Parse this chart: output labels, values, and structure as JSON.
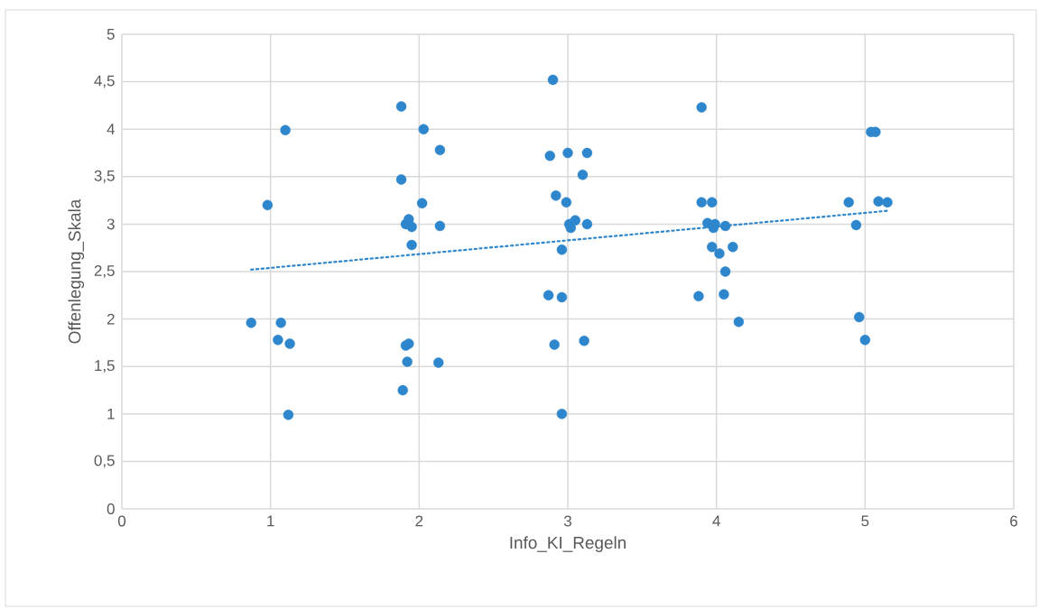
{
  "chart_data": {
    "type": "scatter",
    "xlabel": "Info_KI_Regeln",
    "ylabel": "Offenlegung_Skala",
    "xlim": [
      0,
      6
    ],
    "ylim": [
      0,
      5
    ],
    "xticks": [
      0,
      1,
      2,
      3,
      4,
      5,
      6
    ],
    "yticks": [
      0,
      {
        "value": 0.5,
        "label": "0,5"
      },
      1,
      {
        "value": 1.5,
        "label": "1,5"
      },
      2,
      {
        "value": 2.5,
        "label": "2,5"
      },
      3,
      {
        "value": 3.5,
        "label": "3,5"
      },
      4,
      {
        "value": 4.5,
        "label": "4,5"
      },
      5
    ],
    "grid": true,
    "series": [
      {
        "marker": "circle",
        "color": "#2e86cc",
        "x": [
          0.87,
          0.98,
          1.05,
          1.07,
          1.1,
          1.13,
          1.12,
          1.88,
          1.88,
          1.89,
          1.91,
          1.93,
          1.95,
          1.95,
          1.91,
          1.93,
          1.92,
          2.03,
          2.02,
          2.14,
          2.14,
          2.13,
          2.9,
          2.88,
          3.0,
          3.13,
          3.1,
          2.92,
          2.99,
          3.01,
          3.05,
          3.02,
          3.13,
          2.96,
          2.87,
          2.96,
          2.91,
          3.11,
          2.96,
          3.9,
          3.9,
          3.97,
          3.94,
          3.98,
          3.99,
          4.06,
          3.97,
          4.02,
          4.11,
          4.06,
          4.05,
          3.88,
          4.15,
          5.04,
          5.07,
          4.89,
          5.09,
          5.15,
          4.94,
          4.96,
          5.0
        ],
        "values": [
          1.96,
          3.2,
          1.78,
          1.96,
          3.99,
          1.74,
          0.99,
          4.24,
          3.47,
          1.25,
          3.0,
          3.05,
          2.97,
          2.78,
          1.72,
          1.74,
          1.55,
          4.0,
          3.22,
          3.78,
          2.98,
          1.54,
          4.52,
          3.72,
          3.75,
          3.75,
          3.52,
          3.3,
          3.23,
          3.0,
          3.04,
          2.96,
          3.0,
          2.73,
          2.25,
          2.23,
          1.73,
          1.77,
          1.0,
          4.23,
          3.23,
          3.23,
          3.01,
          2.96,
          3.0,
          2.98,
          2.76,
          2.69,
          2.76,
          2.5,
          2.26,
          2.24,
          1.97,
          3.97,
          3.97,
          3.23,
          3.24,
          3.23,
          2.99,
          2.02,
          1.78
        ]
      },
      {
        "type": "line",
        "marker": "none",
        "line_style": "dotted",
        "color": "#2e86cc",
        "x": [
          0.87,
          5.15
        ],
        "values": [
          2.52,
          3.14
        ]
      }
    ]
  }
}
